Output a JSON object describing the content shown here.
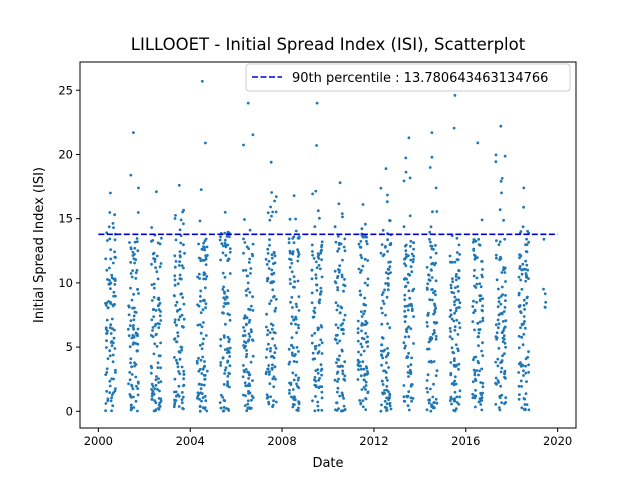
{
  "chart_data": {
    "type": "scatter",
    "title": "LILLOOET - Initial Spread Index (ISI), Scatterplot",
    "xlabel": "Date",
    "ylabel": "Initial Spread Index (ISI)",
    "xlim": [
      1999.2,
      2020.8
    ],
    "ylim": [
      -1.3,
      27.2
    ],
    "x_ticks": [
      2000,
      2004,
      2008,
      2012,
      2016,
      2020
    ],
    "y_ticks": [
      0,
      5,
      10,
      15,
      20,
      25
    ],
    "grid": false,
    "legend_position": "top-right",
    "series": [
      {
        "type": "scatter",
        "color": "#1f77b4",
        "note_seasons": "daily fire-season observations, one cluster per year (approx. Apr–Oct)",
        "seasons": [
          {
            "year": 2000,
            "x_start": 2000.3,
            "x_end": 2000.75,
            "max": 17.0
          },
          {
            "year": 2001,
            "x_start": 2001.3,
            "x_end": 2001.75,
            "max": 21.7
          },
          {
            "year": 2002,
            "x_start": 2002.3,
            "x_end": 2002.75,
            "max": 17.1
          },
          {
            "year": 2003,
            "x_start": 2003.3,
            "x_end": 2003.75,
            "max": 17.6
          },
          {
            "year": 2004,
            "x_start": 2004.3,
            "x_end": 2004.75,
            "max": 25.7
          },
          {
            "year": 2005,
            "x_start": 2005.3,
            "x_end": 2005.75,
            "max": 15.5
          },
          {
            "year": 2006,
            "x_start": 2006.3,
            "x_end": 2006.75,
            "max": 24.0
          },
          {
            "year": 2007,
            "x_start": 2007.3,
            "x_end": 2007.75,
            "max": 19.4
          },
          {
            "year": 2008,
            "x_start": 2008.3,
            "x_end": 2008.75,
            "max": 16.8
          },
          {
            "year": 2009,
            "x_start": 2009.3,
            "x_end": 2009.75,
            "max": 24.0
          },
          {
            "year": 2010,
            "x_start": 2010.3,
            "x_end": 2010.75,
            "max": 17.8
          },
          {
            "year": 2011,
            "x_start": 2011.3,
            "x_end": 2011.75,
            "max": 16.1
          },
          {
            "year": 2012,
            "x_start": 2012.3,
            "x_end": 2012.75,
            "max": 18.9
          },
          {
            "year": 2013,
            "x_start": 2013.3,
            "x_end": 2013.75,
            "max": 21.3
          },
          {
            "year": 2014,
            "x_start": 2014.3,
            "x_end": 2014.75,
            "max": 21.7
          },
          {
            "year": 2015,
            "x_start": 2015.3,
            "x_end": 2015.75,
            "max": 24.6
          },
          {
            "year": 2016,
            "x_start": 2016.3,
            "x_end": 2016.75,
            "max": 20.9
          },
          {
            "year": 2017,
            "x_start": 2017.3,
            "x_end": 2017.75,
            "max": 22.2
          },
          {
            "year": 2018,
            "x_start": 2018.3,
            "x_end": 2018.75,
            "max": 17.4
          },
          {
            "year": 2019,
            "x_start": 2019.3,
            "x_end": 2019.5,
            "max": 13.4
          }
        ]
      },
      {
        "name": "90th percentile : 13.780643463134766",
        "type": "line",
        "style": "dashed",
        "color": "#0000cd",
        "x": [
          2000,
          2020
        ],
        "y": [
          13.780643463134766,
          13.780643463134766
        ]
      }
    ]
  }
}
